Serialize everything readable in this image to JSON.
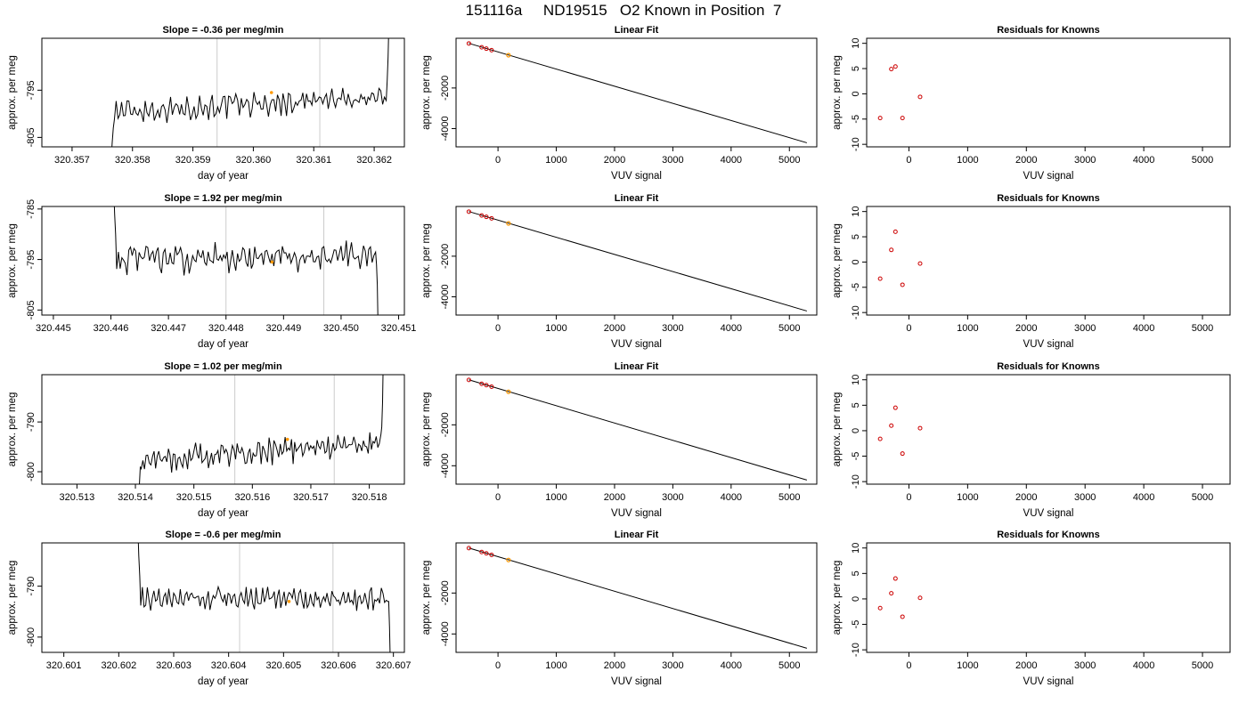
{
  "header": {
    "title": "151116a     ND19515   O2 Known in Position  7"
  },
  "colors": {
    "line": "#000000",
    "gridline": "#cccccc",
    "known_point": "#cc0000",
    "sample_point": "#ff9900",
    "frame": "#000000"
  },
  "chart_data": [
    {
      "row": 1,
      "panel": "time-series",
      "type": "line",
      "title": "Slope =  -0.36  per meg/min",
      "xlabel": "day of year",
      "ylabel": "approx. per meg",
      "xlim": [
        320.3565,
        320.3625
      ],
      "ylim": [
        -807,
        -784
      ],
      "xticks": [
        320.357,
        320.358,
        320.359,
        320.36,
        320.361,
        320.362
      ],
      "xtick_labels": [
        "320.357",
        "320.358",
        "320.359",
        "320.360",
        "320.361",
        "320.362"
      ],
      "yticks": [
        -795,
        -805
      ],
      "ytick_labels": [
        "-795",
        "-805"
      ],
      "vlines": [
        320.3594,
        320.3611
      ],
      "series": [
        {
          "x_start": 320.3577,
          "x_end": 320.3622,
          "base": -798,
          "slope": 3.0,
          "amp": 2.2,
          "lead": [
            -810,
            -806,
            -803
          ],
          "tail": [
            -793,
            -788,
            -780
          ]
        }
      ],
      "highlight_point": {
        "x": 320.3603,
        "y": -795.5
      }
    },
    {
      "row": 1,
      "panel": "linear-fit",
      "type": "scatter",
      "title": "Linear Fit",
      "xlabel": "VUV signal",
      "ylabel": "approx. per meg",
      "xlim": [
        -720,
        5470
      ],
      "ylim": [
        -4900,
        450
      ],
      "xticks": [
        0,
        1000,
        2000,
        3000,
        4000,
        5000
      ],
      "xtick_labels": [
        "0",
        "1000",
        "2000",
        "3000",
        "4000",
        "5000"
      ],
      "yticks": [
        -2000,
        -4000
      ],
      "ytick_labels": [
        "-2000",
        "-4000"
      ],
      "fit_line": {
        "x": [
          -500,
          5300
        ],
        "y": [
          200,
          -4700
        ]
      },
      "points": [
        {
          "x": -500,
          "y": 195
        },
        {
          "x": -280,
          "y": 5
        },
        {
          "x": -200,
          "y": -62
        },
        {
          "x": -110,
          "y": -138
        }
      ],
      "sample_point": {
        "x": 180,
        "y": -384
      }
    },
    {
      "row": 1,
      "panel": "residuals",
      "type": "scatter",
      "title": "Residuals for Knowns",
      "xlabel": "VUV signal",
      "ylabel": "approx. per meg",
      "xlim": [
        -720,
        5470
      ],
      "ylim": [
        -10.5,
        11
      ],
      "xticks": [
        0,
        1000,
        2000,
        3000,
        4000,
        5000
      ],
      "xtick_labels": [
        "0",
        "1000",
        "2000",
        "3000",
        "4000",
        "5000"
      ],
      "yticks": [
        10,
        5,
        0,
        -5,
        -10
      ],
      "ytick_labels": [
        "10",
        "5",
        "0",
        "-5",
        "-10"
      ],
      "points": [
        {
          "x": -490,
          "y": -4.8
        },
        {
          "x": -300,
          "y": 4.9
        },
        {
          "x": -230,
          "y": 5.4
        },
        {
          "x": -110,
          "y": -4.8
        },
        {
          "x": 190,
          "y": -0.6
        }
      ]
    },
    {
      "row": 2,
      "panel": "time-series",
      "type": "line",
      "title": "Slope =  1.92  per meg/min",
      "xlabel": "day of year",
      "ylabel": "approx. per meg",
      "xlim": [
        320.4448,
        320.4511
      ],
      "ylim": [
        -806,
        -784.5
      ],
      "xticks": [
        320.445,
        320.446,
        320.447,
        320.448,
        320.449,
        320.45,
        320.451
      ],
      "xtick_labels": [
        "320.445",
        "320.446",
        "320.447",
        "320.448",
        "320.449",
        "320.450",
        "320.451"
      ],
      "yticks": [
        -785,
        -795,
        -805
      ],
      "ytick_labels": [
        "-785",
        "-795",
        "-805"
      ],
      "vlines": [
        320.448,
        320.4497
      ],
      "series": [
        {
          "x_start": 320.4461,
          "x_end": 320.4506,
          "base": -794.5,
          "slope": 0.6,
          "amp": 2.6,
          "lead": [
            -780,
            -786,
            -790
          ],
          "tail": [
            -796,
            -800,
            -810
          ]
        }
      ],
      "highlight_point": {
        "x": 320.4488,
        "y": -795.5
      }
    },
    {
      "row": 2,
      "panel": "linear-fit",
      "type": "scatter",
      "title": "Linear Fit",
      "xlabel": "VUV signal",
      "ylabel": "approx. per meg",
      "xlim": [
        -720,
        5470
      ],
      "ylim": [
        -4900,
        450
      ],
      "xticks": [
        0,
        1000,
        2000,
        3000,
        4000,
        5000
      ],
      "xtick_labels": [
        "0",
        "1000",
        "2000",
        "3000",
        "4000",
        "5000"
      ],
      "yticks": [
        -2000,
        -4000
      ],
      "ytick_labels": [
        "-2000",
        "-4000"
      ],
      "fit_line": {
        "x": [
          -500,
          5300
        ],
        "y": [
          200,
          -4700
        ]
      },
      "points": [
        {
          "x": -500,
          "y": 195
        },
        {
          "x": -280,
          "y": 5
        },
        {
          "x": -200,
          "y": -62
        },
        {
          "x": -110,
          "y": -138
        }
      ],
      "sample_point": {
        "x": 180,
        "y": -384
      }
    },
    {
      "row": 2,
      "panel": "residuals",
      "type": "scatter",
      "title": "Residuals for Knowns",
      "xlabel": "VUV signal",
      "ylabel": "approx. per meg",
      "xlim": [
        -720,
        5470
      ],
      "ylim": [
        -10.5,
        11
      ],
      "xticks": [
        0,
        1000,
        2000,
        3000,
        4000,
        5000
      ],
      "xtick_labels": [
        "0",
        "1000",
        "2000",
        "3000",
        "4000",
        "5000"
      ],
      "yticks": [
        10,
        5,
        0,
        -5,
        -10
      ],
      "ytick_labels": [
        "10",
        "5",
        "0",
        "-5",
        "-10"
      ],
      "points": [
        {
          "x": -490,
          "y": -3.3
        },
        {
          "x": -300,
          "y": 2.4
        },
        {
          "x": -230,
          "y": 6.0
        },
        {
          "x": -110,
          "y": -4.5
        },
        {
          "x": 190,
          "y": -0.3
        }
      ]
    },
    {
      "row": 3,
      "panel": "time-series",
      "type": "line",
      "title": "Slope =  1.02  per meg/min",
      "xlabel": "day of year",
      "ylabel": "approx. per meg",
      "xlim": [
        320.5124,
        320.5186
      ],
      "ylim": [
        -802.5,
        -780.5
      ],
      "xticks": [
        320.513,
        320.514,
        320.515,
        320.516,
        320.517,
        320.518
      ],
      "xtick_labels": [
        "320.513",
        "320.514",
        "320.515",
        "320.516",
        "320.517",
        "320.518"
      ],
      "yticks": [
        -790,
        -800
      ],
      "ytick_labels": [
        "-790",
        "-800"
      ],
      "vlines": [
        320.5157,
        320.5174
      ],
      "series": [
        {
          "x_start": 320.5141,
          "x_end": 320.5182,
          "base": -796,
          "slope": 3.5,
          "amp": 2.1,
          "lead": [
            -806,
            -803,
            -799
          ],
          "tail": [
            -791,
            -786,
            -776
          ]
        }
      ],
      "highlight_point": {
        "x": 320.5166,
        "y": -793.5
      }
    },
    {
      "row": 3,
      "panel": "linear-fit",
      "type": "scatter",
      "title": "Linear Fit",
      "xlabel": "VUV signal",
      "ylabel": "approx. per meg",
      "xlim": [
        -720,
        5470
      ],
      "ylim": [
        -4900,
        450
      ],
      "xticks": [
        0,
        1000,
        2000,
        3000,
        4000,
        5000
      ],
      "xtick_labels": [
        "0",
        "1000",
        "2000",
        "3000",
        "4000",
        "5000"
      ],
      "yticks": [
        -2000,
        -4000
      ],
      "ytick_labels": [
        "-2000",
        "-4000"
      ],
      "fit_line": {
        "x": [
          -500,
          5300
        ],
        "y": [
          200,
          -4700
        ]
      },
      "points": [
        {
          "x": -500,
          "y": 195
        },
        {
          "x": -280,
          "y": 5
        },
        {
          "x": -200,
          "y": -62
        },
        {
          "x": -110,
          "y": -138
        }
      ],
      "sample_point": {
        "x": 180,
        "y": -384
      }
    },
    {
      "row": 3,
      "panel": "residuals",
      "type": "scatter",
      "title": "Residuals for Knowns",
      "xlabel": "VUV signal",
      "ylabel": "approx. per meg",
      "xlim": [
        -720,
        5470
      ],
      "ylim": [
        -10.5,
        11
      ],
      "xticks": [
        0,
        1000,
        2000,
        3000,
        4000,
        5000
      ],
      "xtick_labels": [
        "0",
        "1000",
        "2000",
        "3000",
        "4000",
        "5000"
      ],
      "yticks": [
        10,
        5,
        0,
        -5,
        -10
      ],
      "ytick_labels": [
        "10",
        "5",
        "0",
        "-5",
        "-10"
      ],
      "points": [
        {
          "x": -490,
          "y": -1.6
        },
        {
          "x": -300,
          "y": 1.0
        },
        {
          "x": -230,
          "y": 4.5
        },
        {
          "x": -110,
          "y": -4.5
        },
        {
          "x": 190,
          "y": 0.5
        }
      ]
    },
    {
      "row": 4,
      "panel": "time-series",
      "type": "line",
      "title": "Slope =  -0.6  per meg/min",
      "xlabel": "day of year",
      "ylabel": "approx. per meg",
      "xlim": [
        320.6006,
        320.6072
      ],
      "ylim": [
        -803,
        -781.5
      ],
      "xticks": [
        320.601,
        320.602,
        320.603,
        320.604,
        320.605,
        320.606,
        320.607
      ],
      "xtick_labels": [
        "320.601",
        "320.602",
        "320.603",
        "320.604",
        "320.605",
        "320.606",
        "320.607"
      ],
      "yticks": [
        -790,
        -800
      ],
      "ytick_labels": [
        "-790",
        "-800"
      ],
      "vlines": [
        320.6042,
        320.6059
      ],
      "series": [
        {
          "x_start": 320.6024,
          "x_end": 320.6069,
          "base": -792.5,
          "slope": -0.4,
          "amp": 1.9,
          "lead": [
            -778,
            -784,
            -788
          ],
          "tail": [
            -793,
            -798,
            -806
          ]
        }
      ],
      "highlight_point": {
        "x": 320.6051,
        "y": -793
      }
    },
    {
      "row": 4,
      "panel": "linear-fit",
      "type": "scatter",
      "title": "Linear Fit",
      "xlabel": "VUV signal",
      "ylabel": "approx. per meg",
      "xlim": [
        -720,
        5470
      ],
      "ylim": [
        -4900,
        450
      ],
      "xticks": [
        0,
        1000,
        2000,
        3000,
        4000,
        5000
      ],
      "xtick_labels": [
        "0",
        "1000",
        "2000",
        "3000",
        "4000",
        "5000"
      ],
      "yticks": [
        -2000,
        -4000
      ],
      "ytick_labels": [
        "-2000",
        "-4000"
      ],
      "fit_line": {
        "x": [
          -500,
          5300
        ],
        "y": [
          200,
          -4700
        ]
      },
      "points": [
        {
          "x": -500,
          "y": 195
        },
        {
          "x": -280,
          "y": 5
        },
        {
          "x": -200,
          "y": -62
        },
        {
          "x": -110,
          "y": -138
        }
      ],
      "sample_point": {
        "x": 180,
        "y": -384
      }
    },
    {
      "row": 4,
      "panel": "residuals",
      "type": "scatter",
      "title": "Residuals for Knowns",
      "xlabel": "VUV signal",
      "ylabel": "approx. per meg",
      "xlim": [
        -720,
        5470
      ],
      "ylim": [
        -10.5,
        11
      ],
      "xticks": [
        0,
        1000,
        2000,
        3000,
        4000,
        5000
      ],
      "xtick_labels": [
        "0",
        "1000",
        "2000",
        "3000",
        "4000",
        "5000"
      ],
      "yticks": [
        10,
        5,
        0,
        -5,
        -10
      ],
      "ytick_labels": [
        "10",
        "5",
        "0",
        "-5",
        "-10"
      ],
      "points": [
        {
          "x": -490,
          "y": -1.8
        },
        {
          "x": -300,
          "y": 1.1
        },
        {
          "x": -230,
          "y": 4.0
        },
        {
          "x": -110,
          "y": -3.5
        },
        {
          "x": 190,
          "y": 0.2
        }
      ]
    }
  ]
}
